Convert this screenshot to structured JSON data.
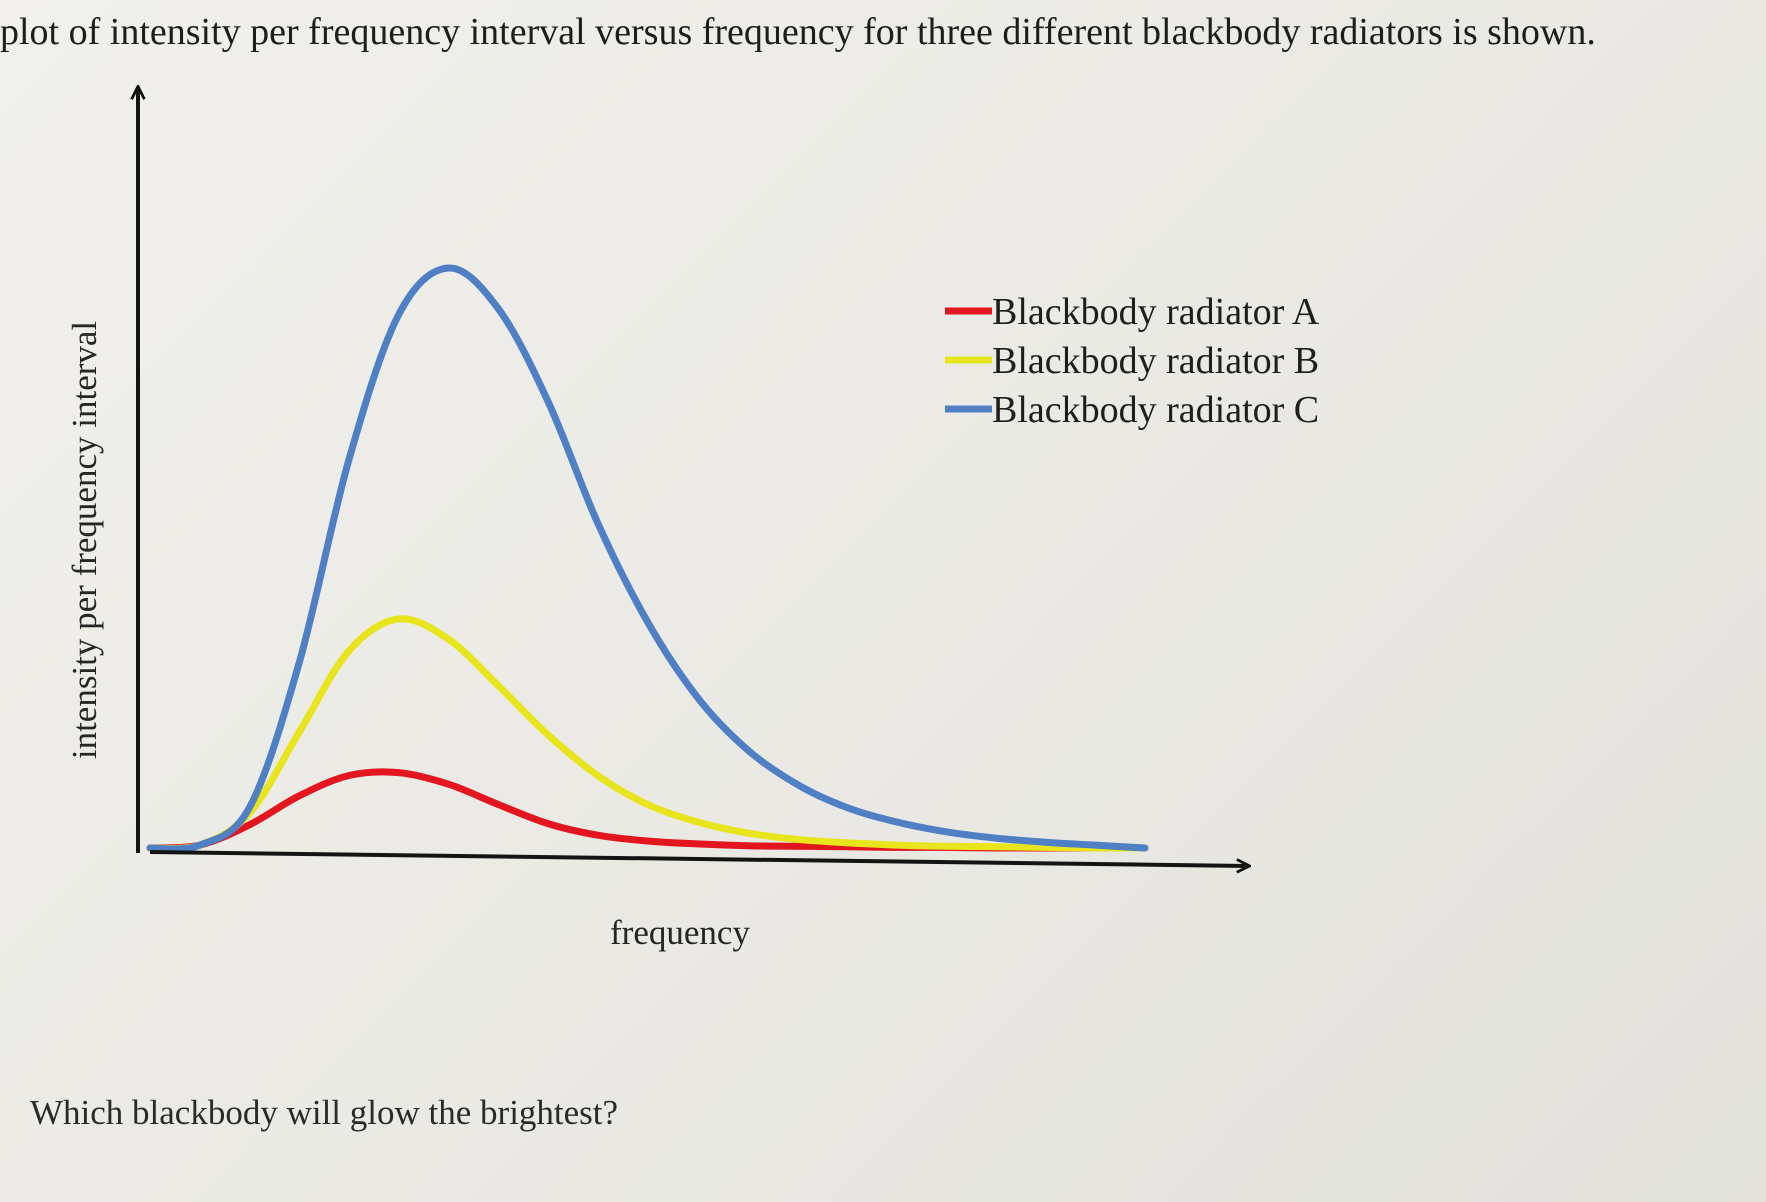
{
  "intro_text": "plot of intensity per frequency interval versus frequency for three different blackbody radiators is shown.",
  "question_text": "Which blackbody will glow the brightest?",
  "chart_data": {
    "type": "line",
    "title": "",
    "xlabel": "frequency",
    "ylabel": "intensity per frequency interval",
    "xlim": [
      0,
      10
    ],
    "ylim": [
      0,
      10
    ],
    "ticks_shown": false,
    "grid": false,
    "legend_position": "top-right",
    "x": [
      0,
      0.5,
      1,
      1.5,
      2,
      2.5,
      3,
      3.5,
      4,
      4.5,
      5,
      5.5,
      6,
      6.5,
      7,
      7.5,
      8,
      8.5,
      9,
      9.5,
      10
    ],
    "series": [
      {
        "name": "Blackbody radiator A",
        "color": "#e3161f",
        "values": [
          0,
          0.05,
          0.4,
          0.9,
          1.25,
          1.3,
          1.1,
          0.75,
          0.42,
          0.22,
          0.12,
          0.07,
          0.04,
          0.03,
          0.02,
          0.01,
          0.01,
          0,
          0,
          0,
          0
        ]
      },
      {
        "name": "Blackbody radiator B",
        "color": "#e8e51c",
        "values": [
          0,
          0.05,
          0.6,
          2.0,
          3.4,
          3.95,
          3.6,
          2.8,
          1.95,
          1.25,
          0.75,
          0.45,
          0.26,
          0.15,
          0.09,
          0.05,
          0.03,
          0.02,
          0.01,
          0,
          0
        ]
      },
      {
        "name": "Blackbody radiator C",
        "color": "#4f7fc4",
        "values": [
          0,
          0.05,
          0.7,
          3.2,
          6.7,
          9.2,
          10.0,
          9.3,
          7.7,
          5.6,
          3.9,
          2.6,
          1.7,
          1.1,
          0.7,
          0.45,
          0.28,
          0.17,
          0.1,
          0.05,
          0
        ]
      }
    ]
  }
}
